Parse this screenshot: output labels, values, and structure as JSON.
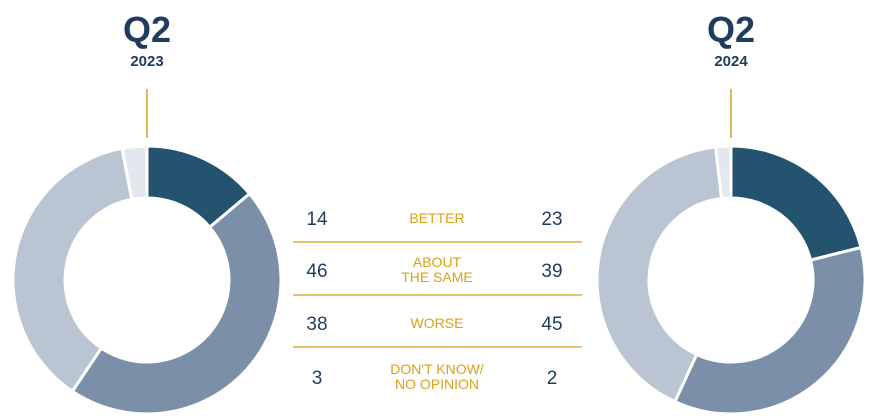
{
  "chart_data": {
    "type": "pie",
    "categories": [
      "BETTER",
      "ABOUT THE SAME",
      "WORSE",
      "DON'T KNOW/ NO OPINION"
    ],
    "category_lines": [
      [
        "BETTER"
      ],
      [
        "ABOUT",
        "THE SAME"
      ],
      [
        "WORSE"
      ],
      [
        "DON'T KNOW/",
        "NO OPINION"
      ]
    ],
    "series": [
      {
        "period": "Q2",
        "year": "2023",
        "values": [
          14,
          46,
          38,
          3
        ]
      },
      {
        "period": "Q2",
        "year": "2024",
        "values": [
          23,
          39,
          45,
          2
        ]
      }
    ],
    "colors": [
      "#23536f",
      "#7b90a8",
      "#bac5d3",
      "#e4e7ed"
    ],
    "separator_color": "#d9a019"
  }
}
